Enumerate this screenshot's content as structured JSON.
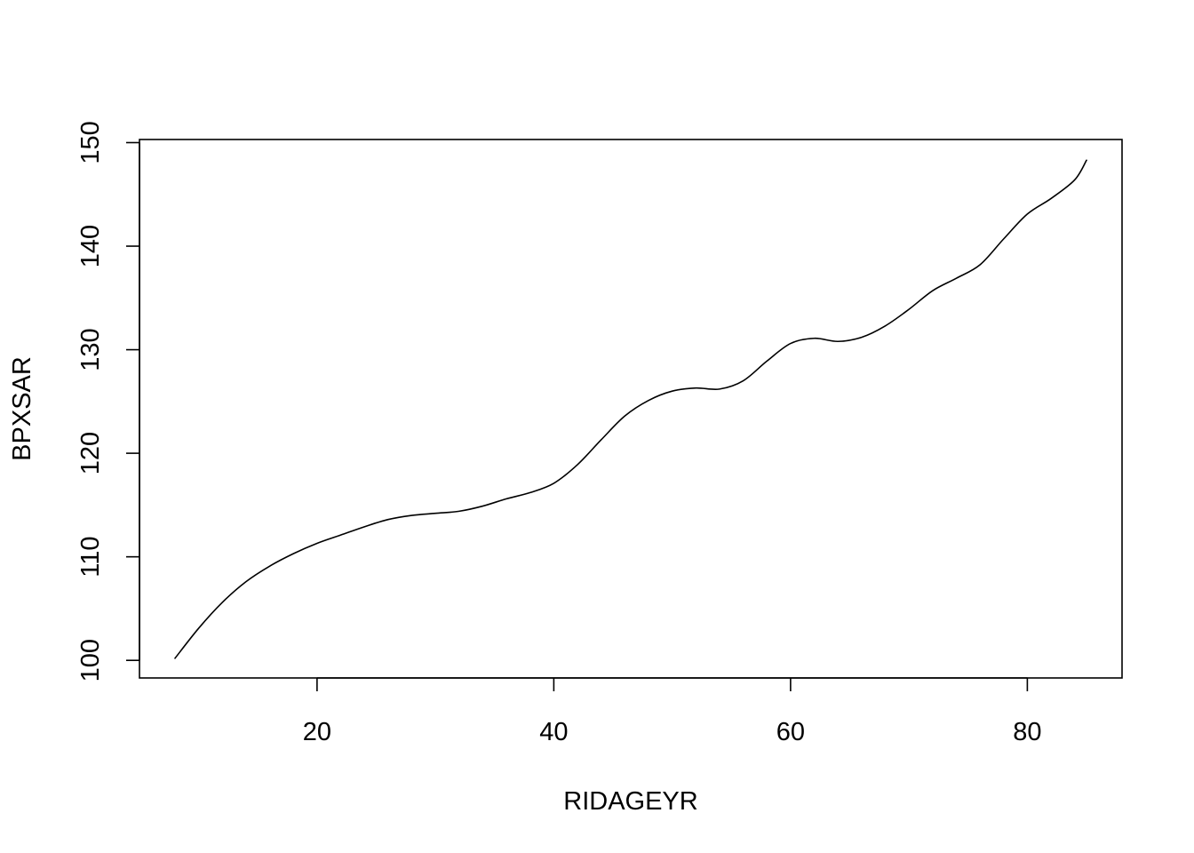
{
  "chart_data": {
    "type": "line",
    "title": "",
    "xlabel": "RIDAGEYR",
    "ylabel": "BPXSAR",
    "xlim": [
      5,
      88
    ],
    "ylim": [
      98.3,
      150.3
    ],
    "xticks": [
      20,
      40,
      60,
      80
    ],
    "yticks": [
      100,
      110,
      120,
      130,
      140,
      150
    ],
    "grid": false,
    "series": [
      {
        "color": "#000000",
        "x": [
          8,
          10,
          12,
          14,
          16,
          18,
          20,
          22,
          24,
          26,
          28,
          30,
          32,
          34,
          36,
          38,
          40,
          42,
          44,
          46,
          48,
          50,
          52,
          54,
          56,
          58,
          60,
          62,
          64,
          66,
          68,
          70,
          72,
          74,
          76,
          78,
          80,
          82,
          84,
          85
        ],
        "y": [
          100.2,
          103.1,
          105.6,
          107.6,
          109.1,
          110.3,
          111.3,
          112.1,
          112.9,
          113.6,
          114.0,
          114.2,
          114.4,
          114.9,
          115.6,
          116.2,
          117.1,
          118.9,
          121.3,
          123.6,
          125.1,
          126.0,
          126.3,
          126.2,
          127.0,
          128.9,
          130.6,
          131.1,
          130.8,
          131.2,
          132.3,
          133.9,
          135.7,
          136.9,
          138.2,
          140.7,
          143.1,
          144.6,
          146.4,
          148.3
        ]
      }
    ]
  }
}
